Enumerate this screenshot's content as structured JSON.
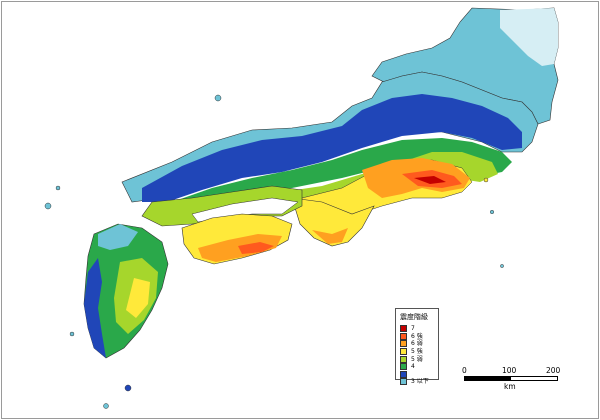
{
  "map": {
    "legend": {
      "title": "震度階級",
      "items": [
        {
          "label": "7",
          "color": "#c40000"
        },
        {
          "label": "6 強",
          "color": "#ff5a1e"
        },
        {
          "label": "6 弱",
          "color": "#ffa020"
        },
        {
          "label": "5 強",
          "color": "#ffe93a"
        },
        {
          "label": "5 弱",
          "color": "#a6d62c"
        },
        {
          "label": "4",
          "color": "#2aa84a"
        },
        {
          "label": "",
          "color": "#2046b8"
        },
        {
          "label": "3 以下",
          "color": "#6ec3d6"
        }
      ]
    },
    "scale": {
      "ticks": [
        "0",
        "100",
        "200"
      ],
      "unit": "km"
    },
    "colors": {
      "7": "#c40000",
      "6+": "#ff5a1e",
      "6-": "#ffa020",
      "5+": "#ffe93a",
      "5-": "#a6d62c",
      "4": "#2aa84a",
      "3b": "#2046b8",
      "3": "#6ec3d6",
      "light": "#d6eef4"
    }
  }
}
